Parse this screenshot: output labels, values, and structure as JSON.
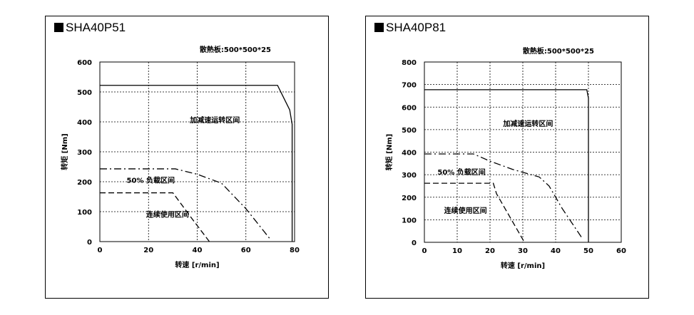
{
  "chart_data": [
    {
      "type": "line",
      "title": "SHA40P51",
      "heatsink_note": "散熱板:500*500*25",
      "xlabel": "转速 [r/min]",
      "ylabel": "转矩 [Nm]",
      "xlim": [
        0,
        80
      ],
      "ylim": [
        0,
        600
      ],
      "xticks": [
        0,
        20,
        40,
        60,
        80
      ],
      "yticks": [
        0,
        100,
        200,
        300,
        400,
        500,
        600
      ],
      "grid": true,
      "series": [
        {
          "style": "solid",
          "x": [
            0,
            73,
            78,
            79,
            79
          ],
          "y": [
            522,
            522,
            440,
            392,
            0
          ]
        },
        {
          "style": "dashdot",
          "x": [
            0,
            31,
            40,
            50,
            60,
            70
          ],
          "y": [
            243,
            243,
            225,
            195,
            110,
            8
          ]
        },
        {
          "style": "dashed",
          "x": [
            0,
            30,
            38,
            45
          ],
          "y": [
            163,
            163,
            75,
            0
          ]
        }
      ],
      "annotations": [
        {
          "text": "加减速运转区间",
          "x": 37,
          "y": 398
        },
        {
          "text": "50% 负载区间",
          "x": 11,
          "y": 197
        },
        {
          "text": "连续使用区间",
          "x": 19,
          "y": 82
        }
      ]
    },
    {
      "type": "line",
      "title": "SHA40P81",
      "heatsink_note": "散熱板:500*500*25",
      "xlabel": "转速 [r/min]",
      "ylabel": "转矩 [Nm]",
      "xlim": [
        0,
        60
      ],
      "ylim": [
        0,
        800
      ],
      "xticks": [
        0,
        10,
        20,
        30,
        40,
        50,
        60
      ],
      "yticks": [
        0,
        100,
        200,
        300,
        400,
        500,
        600,
        700,
        800
      ],
      "grid": true,
      "series": [
        {
          "style": "solid",
          "x": [
            0,
            49.5,
            50,
            50
          ],
          "y": [
            677,
            677,
            640,
            0
          ]
        },
        {
          "style": "dashdot",
          "x": [
            0,
            15,
            20,
            27,
            35,
            38,
            42,
            48
          ],
          "y": [
            392,
            392,
            360,
            323,
            290,
            250,
            150,
            20
          ]
        },
        {
          "style": "dashed",
          "x": [
            0,
            21,
            22,
            30.5
          ],
          "y": [
            262,
            262,
            215,
            0
          ]
        }
      ],
      "annotations": [
        {
          "text": "加减速运转区间",
          "x": 24,
          "y": 515
        },
        {
          "text": "50% 负载区间",
          "x": 4,
          "y": 300
        },
        {
          "text": "连续使用区间",
          "x": 6,
          "y": 130
        }
      ]
    }
  ]
}
